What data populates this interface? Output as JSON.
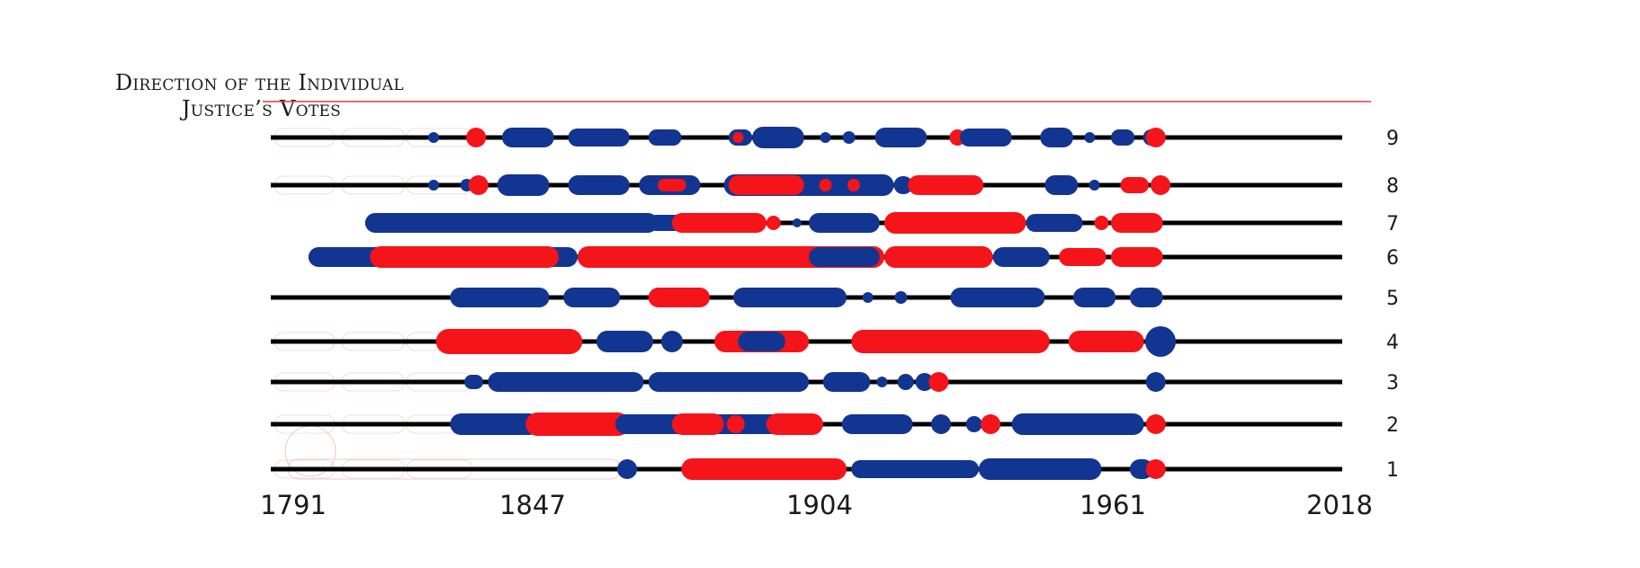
{
  "title": {
    "line1": "Direction of the Individual",
    "line2": "Justice’s Votes"
  },
  "colors": {
    "liberal_blue": "#123592",
    "conservative_red": "#f41419",
    "baseline": "#000000",
    "title_rule": "#e23c3c",
    "ghost_outline": "#e8bcbc"
  },
  "chart_data": {
    "type": "scatter",
    "title": "Direction of the Individual Justice’s Votes",
    "xlabel": "",
    "ylabel": "",
    "x_ticks": [
      1791,
      1847,
      1904,
      1961,
      2018
    ],
    "xlim": [
      1791,
      2018
    ],
    "rows": [
      "1",
      "2",
      "3",
      "4",
      "5",
      "6",
      "7",
      "8",
      "9"
    ],
    "legend": "none",
    "grid": false,
    "series": [
      {
        "row": "9",
        "start": 1791,
        "segments": [
          {
            "from": 1825,
            "to": 1826,
            "dir": "blue",
            "size": 6
          },
          {
            "from": 1833,
            "to": 1836,
            "dir": "red",
            "size": 11
          },
          {
            "from": 1840,
            "to": 1851,
            "dir": "blue",
            "size": 11
          },
          {
            "from": 1854,
            "to": 1867,
            "dir": "blue",
            "size": 10
          },
          {
            "from": 1871,
            "to": 1878,
            "dir": "blue",
            "size": 9
          },
          {
            "from": 1888,
            "to": 1893,
            "dir": "blue",
            "size": 9
          },
          {
            "from": 1893,
            "to": 1904,
            "dir": "blue",
            "size": 12
          },
          {
            "from": 1889,
            "to": 1891,
            "dir": "red",
            "size": 6
          },
          {
            "from": 1908,
            "to": 1909,
            "dir": "blue",
            "size": 6
          },
          {
            "from": 1913,
            "to": 1914,
            "dir": "blue",
            "size": 7
          },
          {
            "from": 1919,
            "to": 1930,
            "dir": "blue",
            "size": 11
          },
          {
            "from": 1936,
            "to": 1937,
            "dir": "red",
            "size": 9
          },
          {
            "from": 1937,
            "to": 1948,
            "dir": "blue",
            "size": 10
          },
          {
            "from": 1954,
            "to": 1961,
            "dir": "blue",
            "size": 11
          },
          {
            "from": 1964,
            "to": 1965,
            "dir": "blue",
            "size": 6
          },
          {
            "from": 1969,
            "to": 1974,
            "dir": "blue",
            "size": 9
          },
          {
            "from": 1977,
            "to": 1978,
            "dir": "blue",
            "size": 9
          },
          {
            "from": 1978,
            "to": 1979,
            "dir": "red",
            "size": 11
          }
        ]
      },
      {
        "row": "8",
        "start": 1791,
        "segments": [
          {
            "from": 1825,
            "to": 1826,
            "dir": "blue",
            "size": 6
          },
          {
            "from": 1832,
            "to": 1833,
            "dir": "blue",
            "size": 7
          },
          {
            "from": 1834,
            "to": 1836,
            "dir": "red",
            "size": 11
          },
          {
            "from": 1839,
            "to": 1850,
            "dir": "blue",
            "size": 12
          },
          {
            "from": 1854,
            "to": 1867,
            "dir": "blue",
            "size": 11
          },
          {
            "from": 1869,
            "to": 1882,
            "dir": "blue",
            "size": 11
          },
          {
            "from": 1873,
            "to": 1879,
            "dir": "red",
            "size": 7
          },
          {
            "from": 1887,
            "to": 1923,
            "dir": "blue",
            "size": 12
          },
          {
            "from": 1888,
            "to": 1904,
            "dir": "red",
            "size": 11
          },
          {
            "from": 1908,
            "to": 1909,
            "dir": "red",
            "size": 7
          },
          {
            "from": 1914,
            "to": 1915,
            "dir": "red",
            "size": 7
          },
          {
            "from": 1923,
            "to": 1927,
            "dir": "blue",
            "size": 10
          },
          {
            "from": 1926,
            "to": 1942,
            "dir": "red",
            "size": 11
          },
          {
            "from": 1955,
            "to": 1962,
            "dir": "blue",
            "size": 11
          },
          {
            "from": 1965,
            "to": 1966,
            "dir": "blue",
            "size": 6
          },
          {
            "from": 1971,
            "to": 1977,
            "dir": "red",
            "size": 9
          },
          {
            "from": 1978,
            "to": 1981,
            "dir": "red",
            "size": 11
          }
        ]
      },
      {
        "row": "7",
        "start": 1811,
        "segments": [
          {
            "from": 1811,
            "to": 1873,
            "dir": "blue",
            "size": 11
          },
          {
            "from": 1871,
            "to": 1879,
            "dir": "blue",
            "size": 9
          },
          {
            "from": 1876,
            "to": 1896,
            "dir": "red",
            "size": 11
          },
          {
            "from": 1896,
            "to": 1899,
            "dir": "red",
            "size": 8
          },
          {
            "from": 1902,
            "to": 1903,
            "dir": "blue",
            "size": 5
          },
          {
            "from": 1905,
            "to": 1920,
            "dir": "blue",
            "size": 11
          },
          {
            "from": 1921,
            "to": 1951,
            "dir": "red",
            "size": 12
          },
          {
            "from": 1951,
            "to": 1963,
            "dir": "blue",
            "size": 10
          },
          {
            "from": 1966,
            "to": 1968,
            "dir": "red",
            "size": 8
          },
          {
            "from": 1969,
            "to": 1980,
            "dir": "red",
            "size": 11
          }
        ]
      },
      {
        "row": "6",
        "start": 1799,
        "segments": [
          {
            "from": 1799,
            "to": 1856,
            "dir": "blue",
            "size": 11
          },
          {
            "from": 1812,
            "to": 1852,
            "dir": "red",
            "size": 12
          },
          {
            "from": 1856,
            "to": 1921,
            "dir": "red",
            "size": 12
          },
          {
            "from": 1905,
            "to": 1920,
            "dir": "blue",
            "size": 11
          },
          {
            "from": 1921,
            "to": 1944,
            "dir": "red",
            "size": 12
          },
          {
            "from": 1944,
            "to": 1956,
            "dir": "blue",
            "size": 11
          },
          {
            "from": 1958,
            "to": 1968,
            "dir": "red",
            "size": 10
          },
          {
            "from": 1969,
            "to": 1980,
            "dir": "red",
            "size": 11
          }
        ]
      },
      {
        "row": "5",
        "start": 1791,
        "segments": [
          {
            "from": 1829,
            "to": 1850,
            "dir": "blue",
            "size": 11
          },
          {
            "from": 1853,
            "to": 1865,
            "dir": "blue",
            "size": 11
          },
          {
            "from": 1871,
            "to": 1884,
            "dir": "red",
            "size": 11
          },
          {
            "from": 1889,
            "to": 1913,
            "dir": "blue",
            "size": 11
          },
          {
            "from": 1917,
            "to": 1918,
            "dir": "blue",
            "size": 6
          },
          {
            "from": 1924,
            "to": 1925,
            "dir": "blue",
            "size": 7
          },
          {
            "from": 1935,
            "to": 1955,
            "dir": "blue",
            "size": 11
          },
          {
            "from": 1961,
            "to": 1970,
            "dir": "blue",
            "size": 11
          },
          {
            "from": 1973,
            "to": 1980,
            "dir": "blue",
            "size": 11
          }
        ]
      },
      {
        "row": "4",
        "start": 1791,
        "segments": [
          {
            "from": 1826,
            "to": 1857,
            "dir": "red",
            "size": 14
          },
          {
            "from": 1860,
            "to": 1872,
            "dir": "blue",
            "size": 12
          },
          {
            "from": 1874,
            "to": 1878,
            "dir": "blue",
            "size": 12
          },
          {
            "from": 1885,
            "to": 1905,
            "dir": "red",
            "size": 12
          },
          {
            "from": 1890,
            "to": 1900,
            "dir": "blue",
            "size": 11
          },
          {
            "from": 1914,
            "to": 1956,
            "dir": "red",
            "size": 13
          },
          {
            "from": 1960,
            "to": 1976,
            "dir": "red",
            "size": 12
          },
          {
            "from": 1978,
            "to": 1981,
            "dir": "blue",
            "size": 17
          }
        ]
      },
      {
        "row": "3",
        "start": 1791,
        "segments": [
          {
            "from": 1832,
            "to": 1836,
            "dir": "blue",
            "size": 8
          },
          {
            "from": 1837,
            "to": 1870,
            "dir": "blue",
            "size": 11
          },
          {
            "from": 1871,
            "to": 1905,
            "dir": "blue",
            "size": 11
          },
          {
            "from": 1908,
            "to": 1918,
            "dir": "blue",
            "size": 11
          },
          {
            "from": 1920,
            "to": 1921,
            "dir": "blue",
            "size": 6
          },
          {
            "from": 1924,
            "to": 1927,
            "dir": "blue",
            "size": 9
          },
          {
            "from": 1929,
            "to": 1930,
            "dir": "blue",
            "size": 10
          },
          {
            "from": 1932,
            "to": 1933,
            "dir": "red",
            "size": 11
          },
          {
            "from": 1978,
            "to": 1979,
            "dir": "blue",
            "size": 11
          }
        ]
      },
      {
        "row": "2",
        "start": 1791,
        "segments": [
          {
            "from": 1829,
            "to": 1848,
            "dir": "blue",
            "size": 12
          },
          {
            "from": 1845,
            "to": 1867,
            "dir": "red",
            "size": 13
          },
          {
            "from": 1864,
            "to": 1880,
            "dir": "blue",
            "size": 11
          },
          {
            "from": 1876,
            "to": 1903,
            "dir": "blue",
            "size": 11
          },
          {
            "from": 1876,
            "to": 1887,
            "dir": "red",
            "size": 12
          },
          {
            "from": 1888,
            "to": 1891,
            "dir": "red",
            "size": 10
          },
          {
            "from": 1896,
            "to": 1908,
            "dir": "red",
            "size": 12
          },
          {
            "from": 1912,
            "to": 1927,
            "dir": "blue",
            "size": 11
          },
          {
            "from": 1931,
            "to": 1935,
            "dir": "blue",
            "size": 11
          },
          {
            "from": 1939,
            "to": 1941,
            "dir": "blue",
            "size": 9
          },
          {
            "from": 1943,
            "to": 1944,
            "dir": "red",
            "size": 11
          },
          {
            "from": 1948,
            "to": 1976,
            "dir": "blue",
            "size": 12
          },
          {
            "from": 1978,
            "to": 1979,
            "dir": "red",
            "size": 11
          }
        ]
      },
      {
        "row": "1",
        "start": 1791,
        "segments": [
          {
            "from": 1865,
            "to": 1868,
            "dir": "blue",
            "size": 11
          },
          {
            "from": 1878,
            "to": 1913,
            "dir": "red",
            "size": 12
          },
          {
            "from": 1914,
            "to": 1941,
            "dir": "blue",
            "size": 10
          },
          {
            "from": 1941,
            "to": 1967,
            "dir": "blue",
            "size": 12
          },
          {
            "from": 1973,
            "to": 1978,
            "dir": "blue",
            "size": 11
          },
          {
            "from": 1978,
            "to": 1979,
            "dir": "red",
            "size": 11
          }
        ]
      }
    ]
  }
}
